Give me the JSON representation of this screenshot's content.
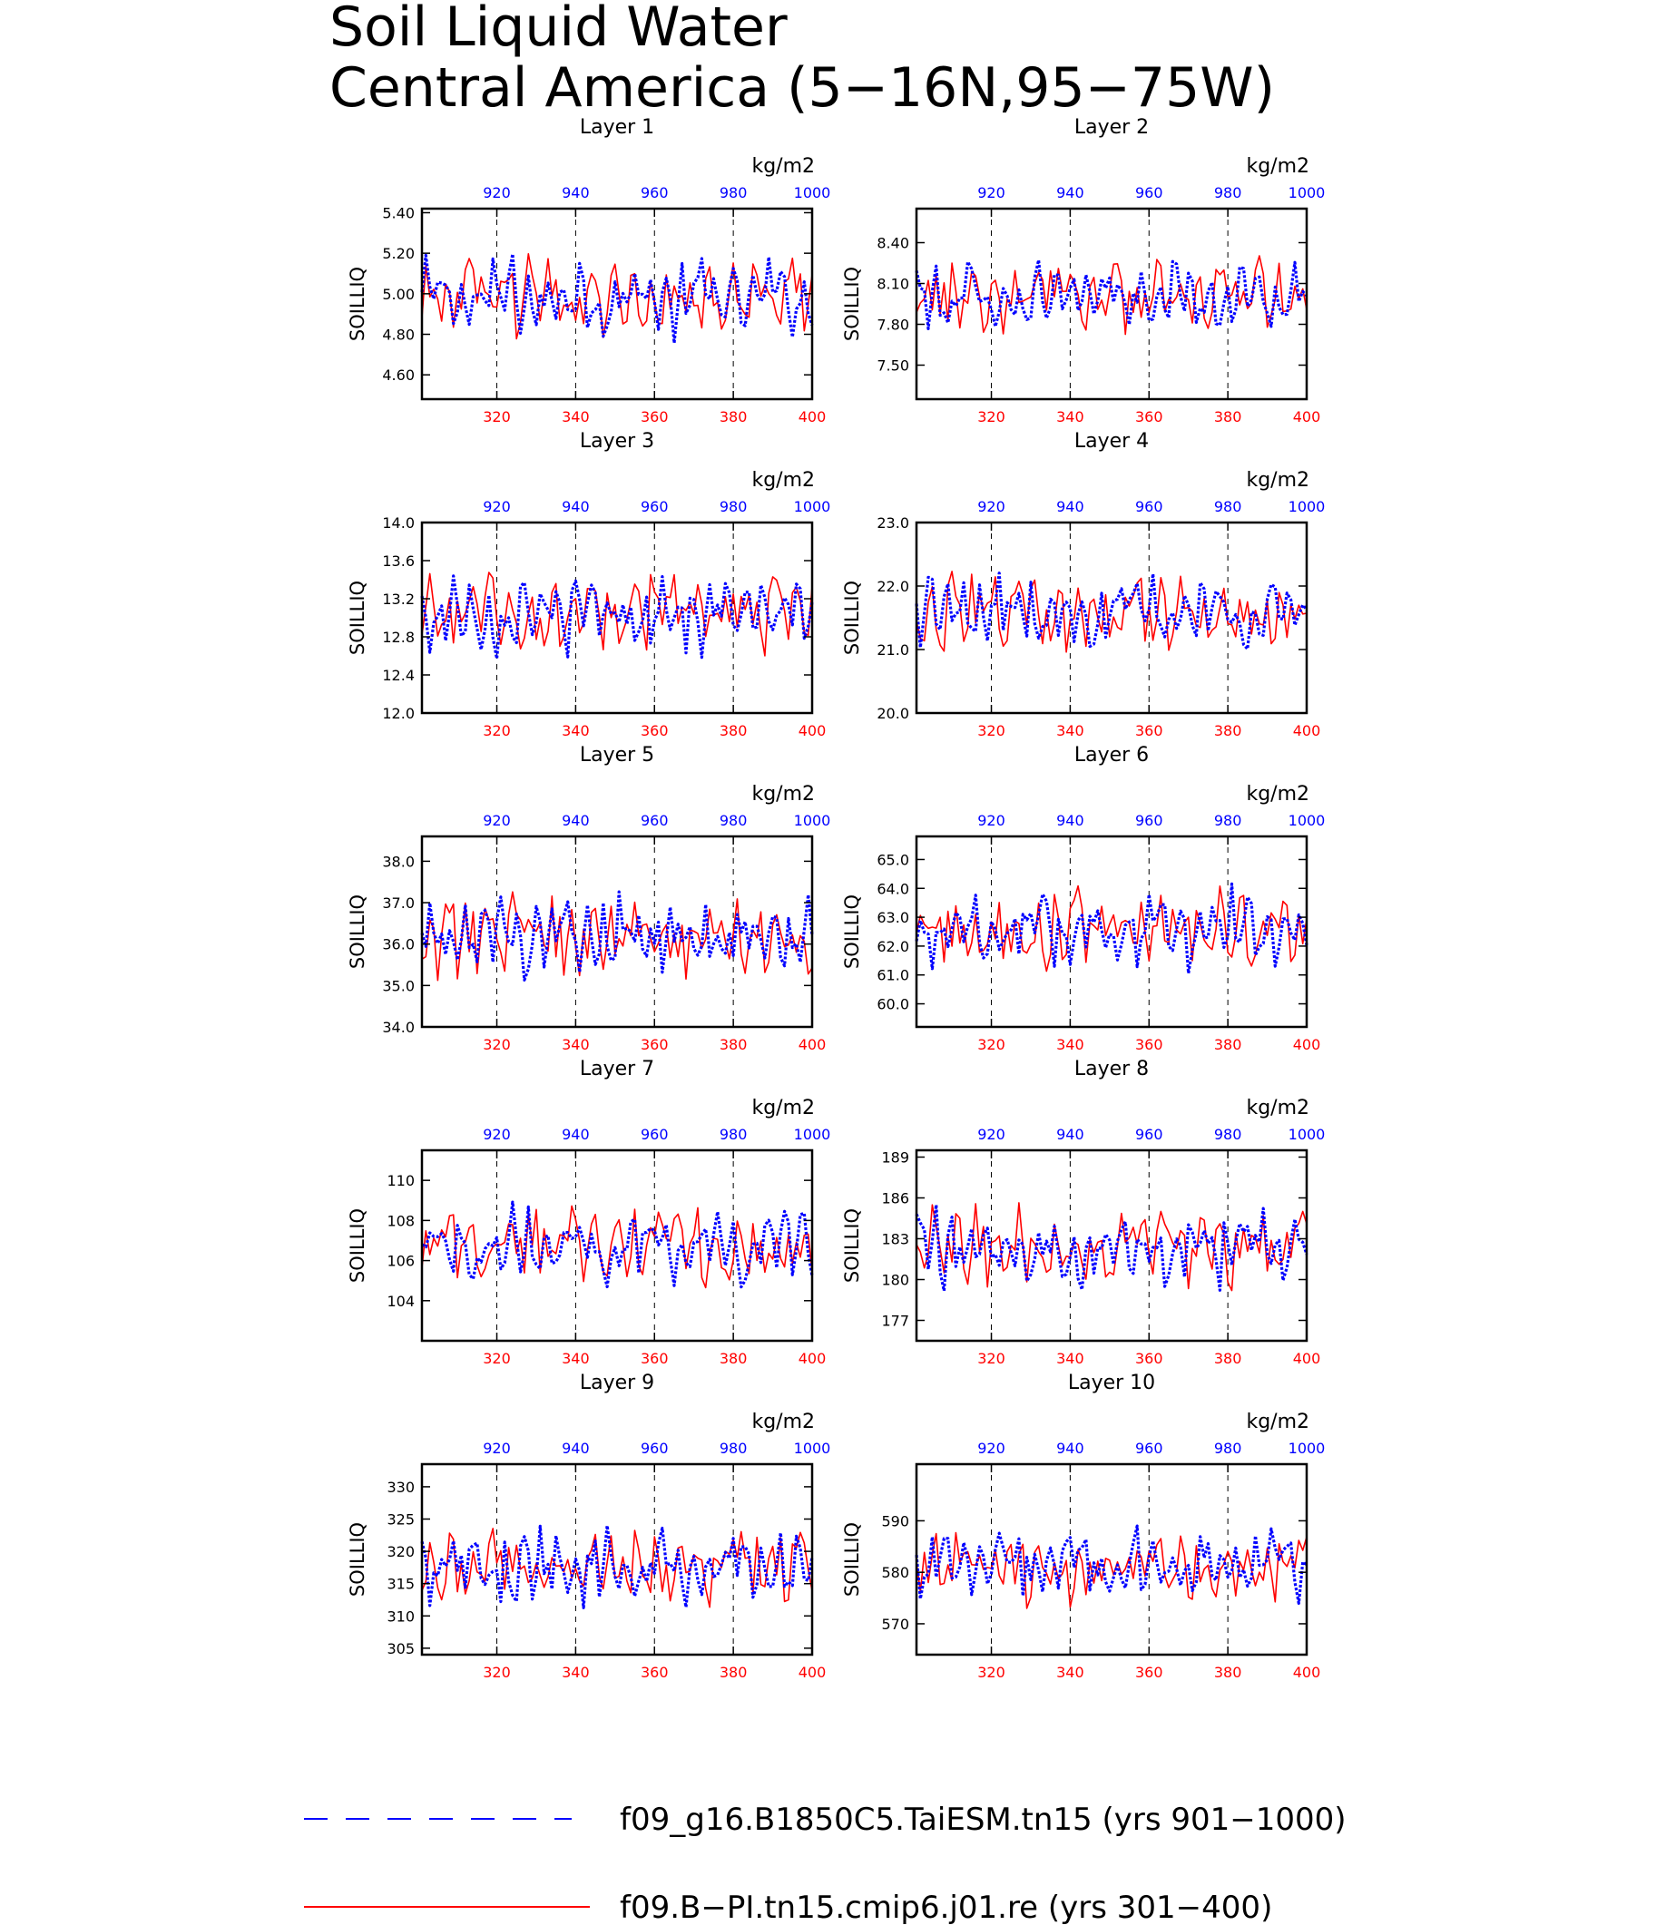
{
  "figure": {
    "title_line1": "Soil Liquid Water",
    "title_line2": "Central America (5−16N,95−75W)"
  },
  "colors": {
    "red_series": "#ff0000",
    "blue_series": "#0000ff",
    "axis": "#000000"
  },
  "legend": [
    {
      "label": "f09_g16.B1850C5.TaiESM.tn15 (yrs 901−1000)",
      "color": "#0000ff",
      "style": "dashed"
    },
    {
      "label": "f09.B−PI.tn15.cmip6.j01.re (yrs 301−400)",
      "color": "#ff0000",
      "style": "solid"
    }
  ],
  "chart_data": [
    {
      "type": "line",
      "title": "Layer 1",
      "ylabel": "SOILLIQ",
      "units": "kg/m2",
      "ylim": [
        4.48,
        5.42
      ],
      "yticks": [
        "4.60",
        "4.80",
        "5.00",
        "5.20",
        "5.40"
      ],
      "yvals": [
        4.6,
        4.8,
        5.0,
        5.2,
        5.4
      ],
      "mean": 4.98,
      "amp": 0.16,
      "bottom_axis": {
        "xlim": [
          301,
          400
        ],
        "ticks": [
          "320",
          "340",
          "360",
          "380",
          "400"
        ],
        "color": "#ff0000"
      },
      "top_axis": {
        "xlim": [
          901,
          1000
        ],
        "ticks": [
          "920",
          "940",
          "960",
          "980",
          "1000"
        ],
        "color": "#0000ff"
      },
      "series": [
        {
          "name": "f09_g16.B1850C5.TaiESM.tn15 (yrs 901−1000)",
          "color": "#0000ff",
          "axis": "top",
          "x_range": [
            901,
            1000
          ],
          "values": []
        },
        {
          "name": "f09.B−PI.tn15.cmip6.j01.re (yrs 301−400)",
          "color": "#ff0000",
          "axis": "bottom",
          "x_range": [
            301,
            400
          ],
          "values": []
        }
      ]
    },
    {
      "type": "line",
      "title": "Layer 2",
      "ylabel": "SOILLIQ",
      "units": "kg/m2",
      "ylim": [
        7.25,
        8.65
      ],
      "yticks": [
        "7.50",
        "7.80",
        "8.10",
        "8.40"
      ],
      "yvals": [
        7.5,
        7.8,
        8.1,
        8.4
      ],
      "mean": 8.0,
      "amp": 0.22,
      "bottom_axis": {
        "xlim": [
          301,
          400
        ],
        "ticks": [
          "320",
          "340",
          "360",
          "380",
          "400"
        ],
        "color": "#ff0000"
      },
      "top_axis": {
        "xlim": [
          901,
          1000
        ],
        "ticks": [
          "920",
          "940",
          "960",
          "980",
          "1000"
        ],
        "color": "#0000ff"
      },
      "series": [
        {
          "name": "f09_g16.B1850C5.TaiESM.tn15 (yrs 901−1000)",
          "color": "#0000ff",
          "axis": "top",
          "x_range": [
            901,
            1000
          ],
          "values": []
        },
        {
          "name": "f09.B−PI.tn15.cmip6.j01.re (yrs 301−400)",
          "color": "#ff0000",
          "axis": "bottom",
          "x_range": [
            301,
            400
          ],
          "values": []
        }
      ]
    },
    {
      "type": "line",
      "title": "Layer 3",
      "ylabel": "SOILLIQ",
      "units": "kg/m2",
      "ylim": [
        12.0,
        14.0
      ],
      "yticks": [
        "12.0",
        "12.4",
        "12.8",
        "13.2",
        "13.6",
        "14.0"
      ],
      "yvals": [
        12.0,
        12.4,
        12.8,
        13.2,
        13.6,
        14.0
      ],
      "mean": 13.05,
      "amp": 0.34,
      "bottom_axis": {
        "xlim": [
          301,
          400
        ],
        "ticks": [
          "320",
          "340",
          "360",
          "380",
          "400"
        ],
        "color": "#ff0000"
      },
      "top_axis": {
        "xlim": [
          901,
          1000
        ],
        "ticks": [
          "920",
          "940",
          "960",
          "980",
          "1000"
        ],
        "color": "#0000ff"
      },
      "series": [
        {
          "name": "f09_g16.B1850C5.TaiESM.tn15 (yrs 901−1000)",
          "color": "#0000ff",
          "axis": "top",
          "x_range": [
            901,
            1000
          ],
          "values": []
        },
        {
          "name": "f09.B−PI.tn15.cmip6.j01.re (yrs 301−400)",
          "color": "#ff0000",
          "axis": "bottom",
          "x_range": [
            301,
            400
          ],
          "values": []
        }
      ]
    },
    {
      "type": "line",
      "title": "Layer 4",
      "ylabel": "SOILLIQ",
      "units": "kg/m2",
      "ylim": [
        20.0,
        23.0
      ],
      "yticks": [
        "20.0",
        "21.0",
        "22.0",
        "23.0"
      ],
      "yvals": [
        20.0,
        21.0,
        22.0,
        23.0
      ],
      "mean": 21.6,
      "amp": 0.5,
      "bottom_axis": {
        "xlim": [
          301,
          400
        ],
        "ticks": [
          "320",
          "340",
          "360",
          "380",
          "400"
        ],
        "color": "#ff0000"
      },
      "top_axis": {
        "xlim": [
          901,
          1000
        ],
        "ticks": [
          "920",
          "940",
          "960",
          "980",
          "1000"
        ],
        "color": "#0000ff"
      },
      "series": [
        {
          "name": "f09_g16.B1850C5.TaiESM.tn15 (yrs 901−1000)",
          "color": "#0000ff",
          "axis": "top",
          "x_range": [
            901,
            1000
          ],
          "values": []
        },
        {
          "name": "f09.B−PI.tn15.cmip6.j01.re (yrs 301−400)",
          "color": "#ff0000",
          "axis": "bottom",
          "x_range": [
            301,
            400
          ],
          "values": []
        }
      ]
    },
    {
      "type": "line",
      "title": "Layer 5",
      "ylabel": "SOILLIQ",
      "units": "kg/m2",
      "ylim": [
        34.0,
        38.6
      ],
      "yticks": [
        "34.0",
        "35.0",
        "36.0",
        "37.0",
        "38.0"
      ],
      "yvals": [
        34.0,
        35.0,
        36.0,
        37.0,
        38.0
      ],
      "mean": 36.2,
      "amp": 0.8,
      "bottom_axis": {
        "xlim": [
          301,
          400
        ],
        "ticks": [
          "320",
          "340",
          "360",
          "380",
          "400"
        ],
        "color": "#ff0000"
      },
      "top_axis": {
        "xlim": [
          901,
          1000
        ],
        "ticks": [
          "920",
          "940",
          "960",
          "980",
          "1000"
        ],
        "color": "#0000ff"
      },
      "series": [
        {
          "name": "f09_g16.B1850C5.TaiESM.tn15 (yrs 901−1000)",
          "color": "#0000ff",
          "axis": "top",
          "x_range": [
            901,
            1000
          ],
          "values": []
        },
        {
          "name": "f09.B−PI.tn15.cmip6.j01.re (yrs 301−400)",
          "color": "#ff0000",
          "axis": "bottom",
          "x_range": [
            301,
            400
          ],
          "values": []
        }
      ]
    },
    {
      "type": "line",
      "title": "Layer 6",
      "ylabel": "SOILLIQ",
      "units": "kg/m2",
      "ylim": [
        59.2,
        65.8
      ],
      "yticks": [
        "60.0",
        "61.0",
        "62.0",
        "63.0",
        "64.0",
        "65.0"
      ],
      "yvals": [
        60.0,
        61.0,
        62.0,
        63.0,
        64.0,
        65.0
      ],
      "mean": 62.6,
      "amp": 1.1,
      "bottom_axis": {
        "xlim": [
          301,
          400
        ],
        "ticks": [
          "320",
          "340",
          "360",
          "380",
          "400"
        ],
        "color": "#ff0000"
      },
      "top_axis": {
        "xlim": [
          901,
          1000
        ],
        "ticks": [
          "920",
          "940",
          "960",
          "980",
          "1000"
        ],
        "color": "#0000ff"
      },
      "series": [
        {
          "name": "f09_g16.B1850C5.TaiESM.tn15 (yrs 901−1000)",
          "color": "#0000ff",
          "axis": "top",
          "x_range": [
            901,
            1000
          ],
          "values": []
        },
        {
          "name": "f09.B−PI.tn15.cmip6.j01.re (yrs 301−400)",
          "color": "#ff0000",
          "axis": "bottom",
          "x_range": [
            301,
            400
          ],
          "values": []
        }
      ]
    },
    {
      "type": "line",
      "title": "Layer 7",
      "ylabel": "SOILLIQ",
      "units": "kg/m2",
      "ylim": [
        102.0,
        111.5
      ],
      "yticks": [
        "104",
        "106",
        "108",
        "110"
      ],
      "yvals": [
        104,
        106,
        108,
        110
      ],
      "mean": 106.8,
      "amp": 1.6,
      "bottom_axis": {
        "xlim": [
          301,
          400
        ],
        "ticks": [
          "320",
          "340",
          "360",
          "380",
          "400"
        ],
        "color": "#ff0000"
      },
      "top_axis": {
        "xlim": [
          901,
          1000
        ],
        "ticks": [
          "920",
          "940",
          "960",
          "980",
          "1000"
        ],
        "color": "#0000ff"
      },
      "series": [
        {
          "name": "f09_g16.B1850C5.TaiESM.tn15 (yrs 901−1000)",
          "color": "#0000ff",
          "axis": "top",
          "x_range": [
            901,
            1000
          ],
          "values": []
        },
        {
          "name": "f09.B−PI.tn15.cmip6.j01.re (yrs 301−400)",
          "color": "#ff0000",
          "axis": "bottom",
          "x_range": [
            301,
            400
          ],
          "values": []
        }
      ]
    },
    {
      "type": "line",
      "title": "Layer 8",
      "ylabel": "SOILLIQ",
      "units": "kg/m2",
      "ylim": [
        175.5,
        189.5
      ],
      "yticks": [
        "177",
        "180",
        "183",
        "186",
        "189"
      ],
      "yvals": [
        177,
        180,
        183,
        186,
        189
      ],
      "mean": 182.5,
      "amp": 2.5,
      "bottom_axis": {
        "xlim": [
          301,
          400
        ],
        "ticks": [
          "320",
          "340",
          "360",
          "380",
          "400"
        ],
        "color": "#ff0000"
      },
      "top_axis": {
        "xlim": [
          901,
          1000
        ],
        "ticks": [
          "920",
          "940",
          "960",
          "980",
          "1000"
        ],
        "color": "#0000ff"
      },
      "series": [
        {
          "name": "f09_g16.B1850C5.TaiESM.tn15 (yrs 901−1000)",
          "color": "#0000ff",
          "axis": "top",
          "x_range": [
            901,
            1000
          ],
          "values": []
        },
        {
          "name": "f09.B−PI.tn15.cmip6.j01.re (yrs 301−400)",
          "color": "#ff0000",
          "axis": "bottom",
          "x_range": [
            301,
            400
          ],
          "values": []
        }
      ]
    },
    {
      "type": "line",
      "title": "Layer 9",
      "ylabel": "SOILLIQ",
      "units": "kg/m2",
      "ylim": [
        304.0,
        333.5
      ],
      "yticks": [
        "305",
        "310",
        "315",
        "320",
        "325",
        "330"
      ],
      "yvals": [
        305,
        310,
        315,
        320,
        325,
        330
      ],
      "mean": 317.5,
      "amp": 5.0,
      "bottom_axis": {
        "xlim": [
          301,
          400
        ],
        "ticks": [
          "320",
          "340",
          "360",
          "380",
          "400"
        ],
        "color": "#ff0000"
      },
      "top_axis": {
        "xlim": [
          901,
          1000
        ],
        "ticks": [
          "920",
          "940",
          "960",
          "980",
          "1000"
        ],
        "color": "#0000ff"
      },
      "series": [
        {
          "name": "f09_g16.B1850C5.TaiESM.tn15 (yrs 901−1000)",
          "color": "#0000ff",
          "axis": "top",
          "x_range": [
            901,
            1000
          ],
          "values": []
        },
        {
          "name": "f09.B−PI.tn15.cmip6.j01.re (yrs 301−400)",
          "color": "#ff0000",
          "axis": "bottom",
          "x_range": [
            301,
            400
          ],
          "values": []
        }
      ]
    },
    {
      "type": "line",
      "title": "Layer 10",
      "ylabel": "SOILLIQ",
      "units": "kg/m2",
      "ylim": [
        564.0,
        601.0
      ],
      "yticks": [
        "570",
        "580",
        "590"
      ],
      "yvals": [
        570,
        580,
        590
      ],
      "mean": 581.0,
      "amp": 6.0,
      "bottom_axis": {
        "xlim": [
          301,
          400
        ],
        "ticks": [
          "320",
          "340",
          "360",
          "380",
          "400"
        ],
        "color": "#ff0000"
      },
      "top_axis": {
        "xlim": [
          901,
          1000
        ],
        "ticks": [
          "920",
          "940",
          "960",
          "980",
          "1000"
        ],
        "color": "#0000ff"
      },
      "series": [
        {
          "name": "f09_g16.B1850C5.TaiESM.tn15 (yrs 901−1000)",
          "color": "#0000ff",
          "axis": "top",
          "x_range": [
            901,
            1000
          ],
          "values": []
        },
        {
          "name": "f09.B−PI.tn15.cmip6.j01.re (yrs 301−400)",
          "color": "#ff0000",
          "axis": "bottom",
          "x_range": [
            301,
            400
          ],
          "values": []
        }
      ]
    }
  ]
}
